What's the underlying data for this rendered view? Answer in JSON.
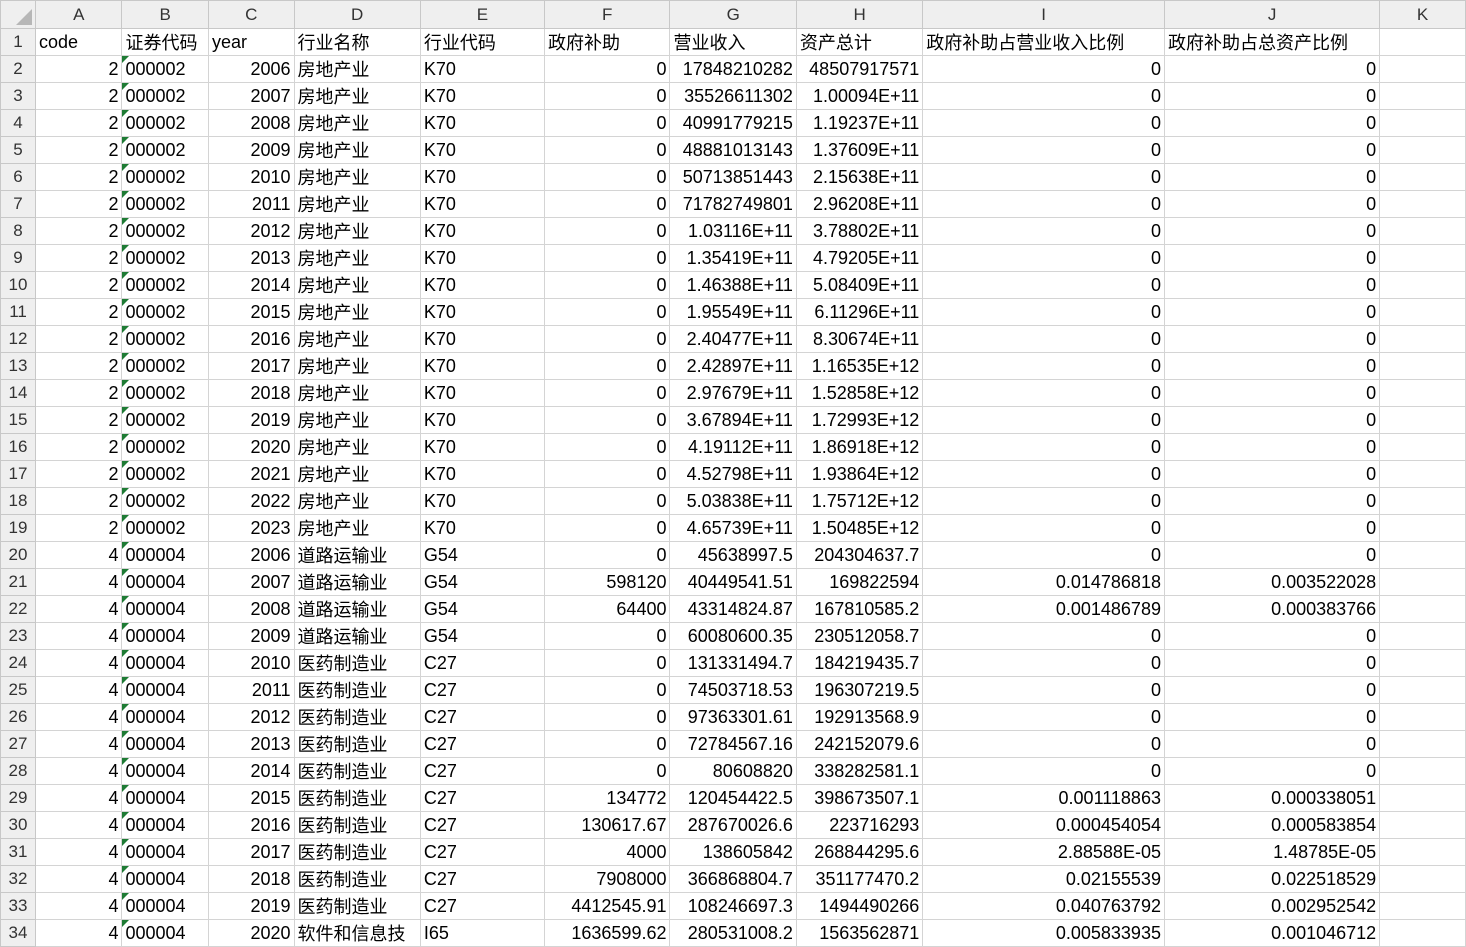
{
  "columns": [
    "A",
    "B",
    "C",
    "D",
    "E",
    "F",
    "G",
    "H",
    "I",
    "J",
    "K"
  ],
  "header_row": [
    "code",
    "证券代码",
    "year",
    "行业名称",
    "行业代码",
    "政府补助",
    "营业收入",
    "资产总计",
    "政府补助占营业收入比例",
    "政府补助占总资产比例",
    ""
  ],
  "rows": [
    [
      "2",
      "000002",
      "2006",
      "房地产业",
      "K70",
      "0",
      "17848210282",
      "48507917571",
      "0",
      "0"
    ],
    [
      "2",
      "000002",
      "2007",
      "房地产业",
      "K70",
      "0",
      "35526611302",
      "1.00094E+11",
      "0",
      "0"
    ],
    [
      "2",
      "000002",
      "2008",
      "房地产业",
      "K70",
      "0",
      "40991779215",
      "1.19237E+11",
      "0",
      "0"
    ],
    [
      "2",
      "000002",
      "2009",
      "房地产业",
      "K70",
      "0",
      "48881013143",
      "1.37609E+11",
      "0",
      "0"
    ],
    [
      "2",
      "000002",
      "2010",
      "房地产业",
      "K70",
      "0",
      "50713851443",
      "2.15638E+11",
      "0",
      "0"
    ],
    [
      "2",
      "000002",
      "2011",
      "房地产业",
      "K70",
      "0",
      "71782749801",
      "2.96208E+11",
      "0",
      "0"
    ],
    [
      "2",
      "000002",
      "2012",
      "房地产业",
      "K70",
      "0",
      "1.03116E+11",
      "3.78802E+11",
      "0",
      "0"
    ],
    [
      "2",
      "000002",
      "2013",
      "房地产业",
      "K70",
      "0",
      "1.35419E+11",
      "4.79205E+11",
      "0",
      "0"
    ],
    [
      "2",
      "000002",
      "2014",
      "房地产业",
      "K70",
      "0",
      "1.46388E+11",
      "5.08409E+11",
      "0",
      "0"
    ],
    [
      "2",
      "000002",
      "2015",
      "房地产业",
      "K70",
      "0",
      "1.95549E+11",
      "6.11296E+11",
      "0",
      "0"
    ],
    [
      "2",
      "000002",
      "2016",
      "房地产业",
      "K70",
      "0",
      "2.40477E+11",
      "8.30674E+11",
      "0",
      "0"
    ],
    [
      "2",
      "000002",
      "2017",
      "房地产业",
      "K70",
      "0",
      "2.42897E+11",
      "1.16535E+12",
      "0",
      "0"
    ],
    [
      "2",
      "000002",
      "2018",
      "房地产业",
      "K70",
      "0",
      "2.97679E+11",
      "1.52858E+12",
      "0",
      "0"
    ],
    [
      "2",
      "000002",
      "2019",
      "房地产业",
      "K70",
      "0",
      "3.67894E+11",
      "1.72993E+12",
      "0",
      "0"
    ],
    [
      "2",
      "000002",
      "2020",
      "房地产业",
      "K70",
      "0",
      "4.19112E+11",
      "1.86918E+12",
      "0",
      "0"
    ],
    [
      "2",
      "000002",
      "2021",
      "房地产业",
      "K70",
      "0",
      "4.52798E+11",
      "1.93864E+12",
      "0",
      "0"
    ],
    [
      "2",
      "000002",
      "2022",
      "房地产业",
      "K70",
      "0",
      "5.03838E+11",
      "1.75712E+12",
      "0",
      "0"
    ],
    [
      "2",
      "000002",
      "2023",
      "房地产业",
      "K70",
      "0",
      "4.65739E+11",
      "1.50485E+12",
      "0",
      "0"
    ],
    [
      "4",
      "000004",
      "2006",
      "道路运输业",
      "G54",
      "0",
      "45638997.5",
      "204304637.7",
      "0",
      "0"
    ],
    [
      "4",
      "000004",
      "2007",
      "道路运输业",
      "G54",
      "598120",
      "40449541.51",
      "169822594",
      "0.014786818",
      "0.003522028"
    ],
    [
      "4",
      "000004",
      "2008",
      "道路运输业",
      "G54",
      "64400",
      "43314824.87",
      "167810585.2",
      "0.001486789",
      "0.000383766"
    ],
    [
      "4",
      "000004",
      "2009",
      "道路运输业",
      "G54",
      "0",
      "60080600.35",
      "230512058.7",
      "0",
      "0"
    ],
    [
      "4",
      "000004",
      "2010",
      "医药制造业",
      "C27",
      "0",
      "131331494.7",
      "184219435.7",
      "0",
      "0"
    ],
    [
      "4",
      "000004",
      "2011",
      "医药制造业",
      "C27",
      "0",
      "74503718.53",
      "196307219.5",
      "0",
      "0"
    ],
    [
      "4",
      "000004",
      "2012",
      "医药制造业",
      "C27",
      "0",
      "97363301.61",
      "192913568.9",
      "0",
      "0"
    ],
    [
      "4",
      "000004",
      "2013",
      "医药制造业",
      "C27",
      "0",
      "72784567.16",
      "242152079.6",
      "0",
      "0"
    ],
    [
      "4",
      "000004",
      "2014",
      "医药制造业",
      "C27",
      "0",
      "80608820",
      "338282581.1",
      "0",
      "0"
    ],
    [
      "4",
      "000004",
      "2015",
      "医药制造业",
      "C27",
      "134772",
      "120454422.5",
      "398673507.1",
      "0.001118863",
      "0.000338051"
    ],
    [
      "4",
      "000004",
      "2016",
      "医药制造业",
      "C27",
      "130617.67",
      "287670026.6",
      "223716293",
      "0.000454054",
      "0.000583854"
    ],
    [
      "4",
      "000004",
      "2017",
      "医药制造业",
      "C27",
      "4000",
      "138605842",
      "268844295.6",
      "2.88588E-05",
      "1.48785E-05"
    ],
    [
      "4",
      "000004",
      "2018",
      "医药制造业",
      "C27",
      "7908000",
      "366868804.7",
      "351177470.2",
      "0.02155539",
      "0.022518529"
    ],
    [
      "4",
      "000004",
      "2019",
      "医药制造业",
      "C27",
      "4412545.91",
      "108246697.3",
      "1494490266",
      "0.040763792",
      "0.002952542"
    ],
    [
      "4",
      "000004",
      "2020",
      "软件和信息技",
      "I65",
      "1636599.62",
      "280531008.2",
      "1563562871",
      "0.005833935",
      "0.001046712"
    ]
  ]
}
